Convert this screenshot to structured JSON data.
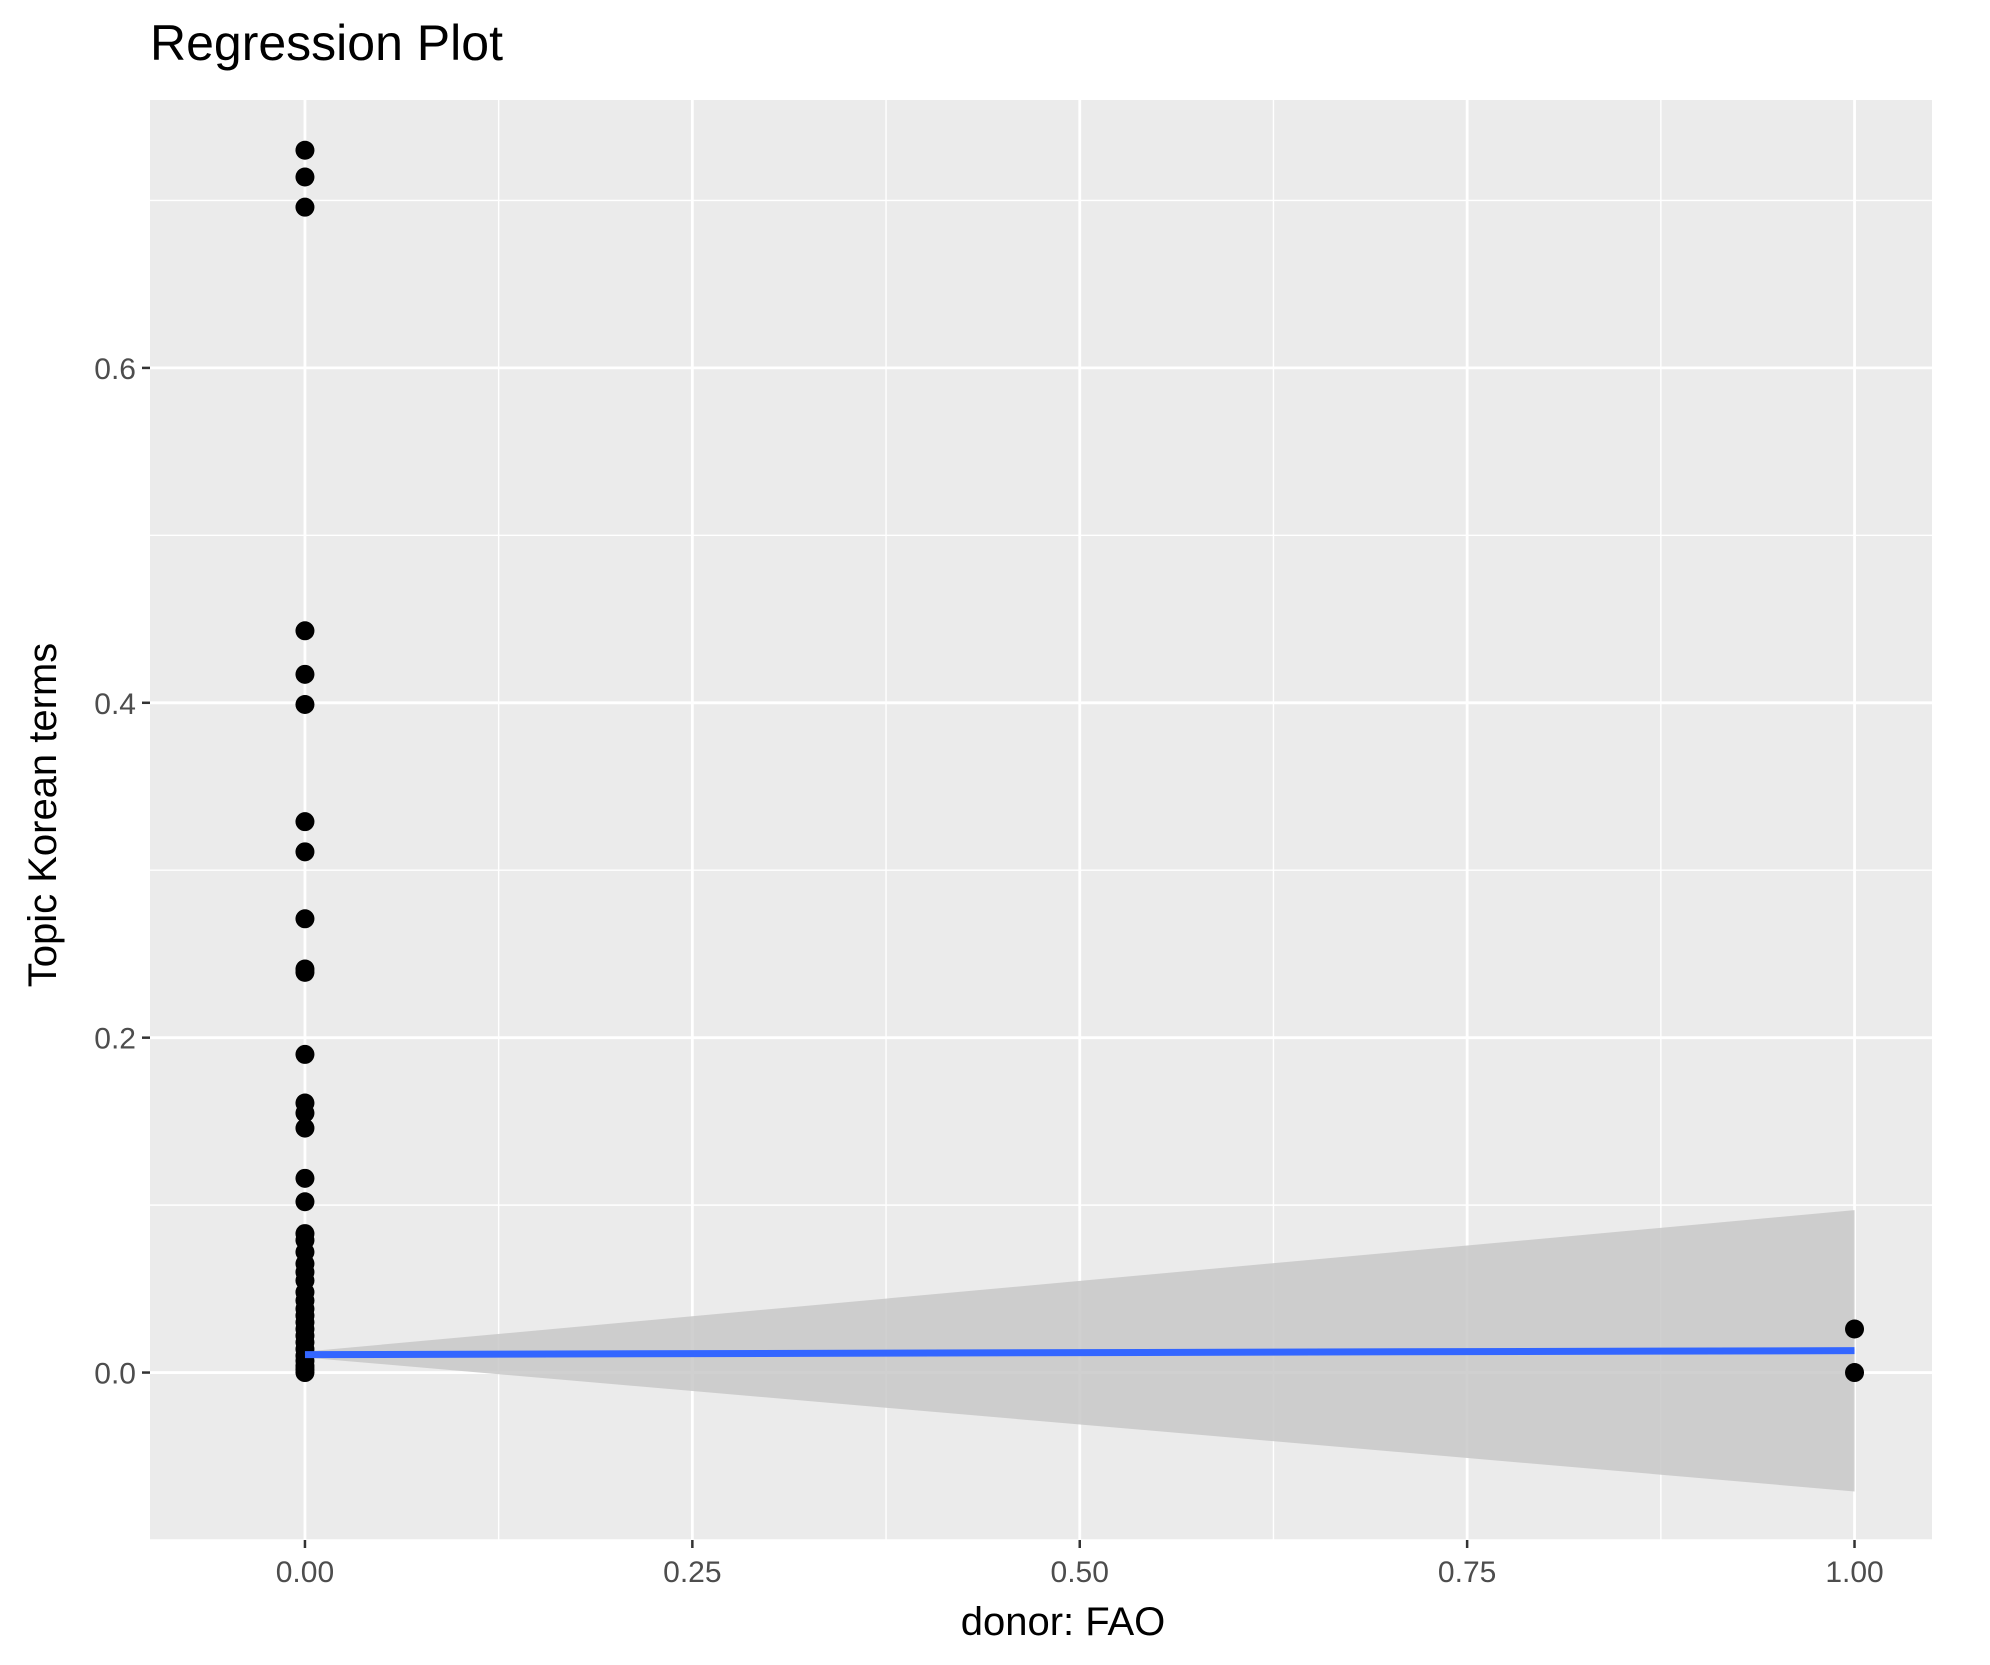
{
  "chart_data": {
    "type": "scatter",
    "title": "Regression Plot",
    "xlabel": "donor: FAO",
    "ylabel": "Topic Korean terms",
    "xlim": [
      -0.1,
      1.05
    ],
    "ylim": [
      -0.1,
      0.76
    ],
    "x_ticks": [
      0.0,
      0.25,
      0.5,
      0.75,
      1.0
    ],
    "x_tick_labels": [
      "0.00",
      "0.25",
      "0.50",
      "0.75",
      "1.00"
    ],
    "y_ticks": [
      0.0,
      0.2,
      0.4,
      0.6
    ],
    "y_tick_labels": [
      "0.0",
      "0.2",
      "0.4",
      "0.6"
    ],
    "grid": true,
    "legend": "none",
    "colors": {
      "panel": "#ebebeb",
      "grid": "#ffffff",
      "points": "#000000",
      "line": "#3366ff",
      "ribbon": "#c8c8c8"
    },
    "points": [
      {
        "x": 0,
        "y": 0.73
      },
      {
        "x": 0,
        "y": 0.714
      },
      {
        "x": 0,
        "y": 0.696
      },
      {
        "x": 0,
        "y": 0.443
      },
      {
        "x": 0,
        "y": 0.417
      },
      {
        "x": 0,
        "y": 0.399
      },
      {
        "x": 0,
        "y": 0.329
      },
      {
        "x": 0,
        "y": 0.311
      },
      {
        "x": 0,
        "y": 0.271
      },
      {
        "x": 0,
        "y": 0.241
      },
      {
        "x": 0,
        "y": 0.239
      },
      {
        "x": 0,
        "y": 0.19
      },
      {
        "x": 0,
        "y": 0.161
      },
      {
        "x": 0,
        "y": 0.155
      },
      {
        "x": 0,
        "y": 0.146
      },
      {
        "x": 0,
        "y": 0.116
      },
      {
        "x": 0,
        "y": 0.102
      },
      {
        "x": 0,
        "y": 0.083
      },
      {
        "x": 0,
        "y": 0.079
      },
      {
        "x": 0,
        "y": 0.072
      },
      {
        "x": 0,
        "y": 0.065
      },
      {
        "x": 0,
        "y": 0.06
      },
      {
        "x": 0,
        "y": 0.055
      },
      {
        "x": 0,
        "y": 0.048
      },
      {
        "x": 0,
        "y": 0.043
      },
      {
        "x": 0,
        "y": 0.038
      },
      {
        "x": 0,
        "y": 0.034
      },
      {
        "x": 0,
        "y": 0.03
      },
      {
        "x": 0,
        "y": 0.026
      },
      {
        "x": 0,
        "y": 0.022
      },
      {
        "x": 0,
        "y": 0.018
      },
      {
        "x": 0,
        "y": 0.014
      },
      {
        "x": 0,
        "y": 0.01
      },
      {
        "x": 0,
        "y": 0.007
      },
      {
        "x": 0,
        "y": 0.004
      },
      {
        "x": 0,
        "y": 0.002
      },
      {
        "x": 0,
        "y": 0.0
      },
      {
        "x": 1,
        "y": 0.026
      },
      {
        "x": 1,
        "y": 0.0
      }
    ],
    "regression_line": {
      "x": [
        0,
        1
      ],
      "y": [
        0.0107,
        0.0131
      ]
    },
    "confidence_band": {
      "x": [
        0,
        1
      ],
      "lower": [
        0.009,
        -0.071
      ],
      "upper": [
        0.0125,
        0.097
      ]
    }
  }
}
